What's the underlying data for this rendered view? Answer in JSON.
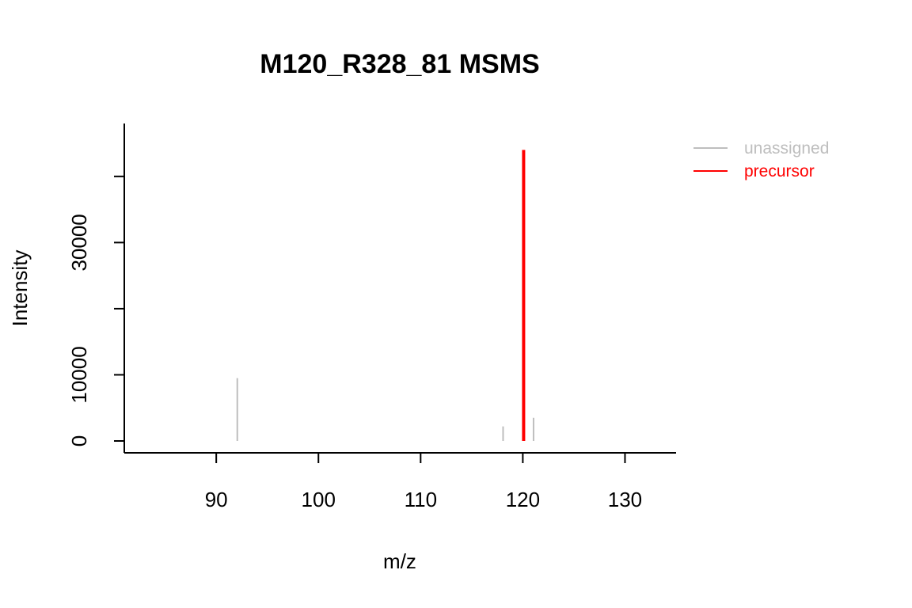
{
  "chart_data": {
    "type": "bar",
    "title": "M120_R328_81 MSMS",
    "xlabel": "m/z",
    "ylabel": "Intensity",
    "xlim": [
      81,
      135
    ],
    "ylim": [
      0,
      48000
    ],
    "x_ticks": [
      90,
      100,
      110,
      120,
      130
    ],
    "x_tick_labels": [
      "90",
      "100",
      "110",
      "120",
      "130"
    ],
    "y_ticks": [
      0,
      10000,
      20000,
      30000,
      40000
    ],
    "y_tick_labels": [
      "0",
      "10000",
      "",
      "30000",
      ""
    ],
    "series": [
      {
        "name": "unassigned",
        "color": "#bebebe",
        "x": [
          92.06,
          118.07,
          121.05
        ],
        "y": [
          9500,
          2200,
          3500
        ]
      },
      {
        "name": "precursor",
        "color": "#ff0000",
        "x": [
          120.08
        ],
        "y": [
          44000
        ]
      }
    ],
    "legend_position": "top-right",
    "grid": false
  }
}
